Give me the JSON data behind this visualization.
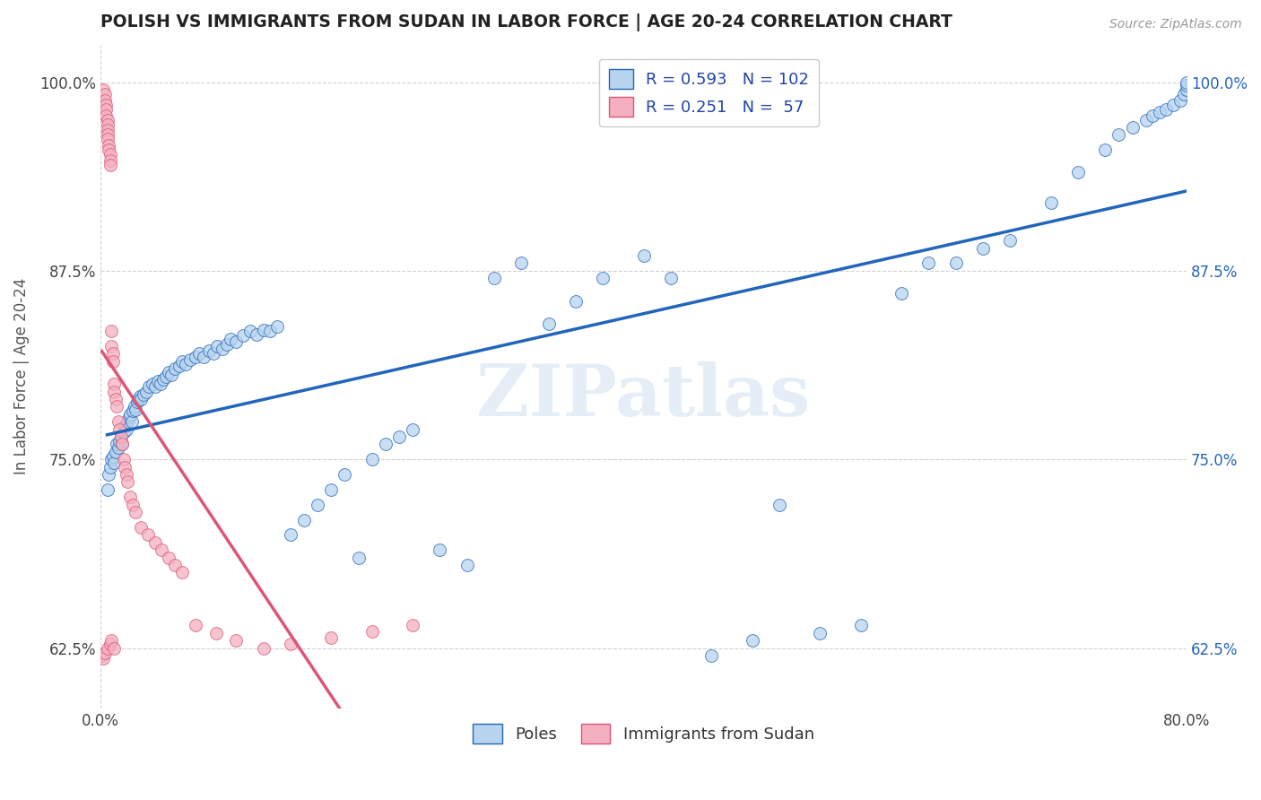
{
  "title": "POLISH VS IMMIGRANTS FROM SUDAN IN LABOR FORCE | AGE 20-24 CORRELATION CHART",
  "source": "Source: ZipAtlas.com",
  "ylabel": "In Labor Force | Age 20-24",
  "blue_r": 0.593,
  "blue_n": 102,
  "pink_r": 0.251,
  "pink_n": 57,
  "legend_label_blue": "Poles",
  "legend_label_pink": "Immigrants from Sudan",
  "blue_color": "#b8d4ee",
  "pink_color": "#f4b0c0",
  "blue_line_color": "#2266bb",
  "pink_line_color": "#dd5577",
  "legend_r_color": "#2244aa",
  "background_color": "#ffffff",
  "xlim": [
    0.0,
    0.8
  ],
  "ylim": [
    0.585,
    1.025
  ],
  "y_ticks": [
    0.625,
    0.75,
    0.875,
    1.0
  ],
  "y_labels": [
    "62.5%",
    "75.0%",
    "87.5%",
    "100.0%"
  ],
  "blue_scatter_x": [
    0.005,
    0.006,
    0.007,
    0.008,
    0.009,
    0.01,
    0.011,
    0.012,
    0.013,
    0.014,
    0.015,
    0.016,
    0.017,
    0.018,
    0.019,
    0.02,
    0.021,
    0.022,
    0.023,
    0.024,
    0.025,
    0.026,
    0.027,
    0.028,
    0.029,
    0.03,
    0.032,
    0.034,
    0.036,
    0.038,
    0.04,
    0.042,
    0.044,
    0.046,
    0.048,
    0.05,
    0.052,
    0.055,
    0.058,
    0.06,
    0.063,
    0.066,
    0.07,
    0.073,
    0.076,
    0.08,
    0.083,
    0.086,
    0.09,
    0.093,
    0.096,
    0.1,
    0.105,
    0.11,
    0.115,
    0.12,
    0.125,
    0.13,
    0.14,
    0.15,
    0.16,
    0.17,
    0.18,
    0.19,
    0.2,
    0.21,
    0.22,
    0.23,
    0.25,
    0.27,
    0.29,
    0.31,
    0.33,
    0.35,
    0.37,
    0.4,
    0.42,
    0.45,
    0.48,
    0.5,
    0.53,
    0.56,
    0.59,
    0.61,
    0.63,
    0.65,
    0.67,
    0.7,
    0.72,
    0.74,
    0.75,
    0.76,
    0.77,
    0.775,
    0.78,
    0.785,
    0.79,
    0.795,
    0.798,
    0.8,
    0.8,
    0.8
  ],
  "blue_scatter_y": [
    0.73,
    0.74,
    0.745,
    0.75,
    0.752,
    0.748,
    0.755,
    0.76,
    0.758,
    0.762,
    0.765,
    0.76,
    0.768,
    0.772,
    0.77,
    0.775,
    0.778,
    0.78,
    0.775,
    0.782,
    0.785,
    0.783,
    0.788,
    0.79,
    0.792,
    0.79,
    0.793,
    0.795,
    0.798,
    0.8,
    0.798,
    0.802,
    0.8,
    0.803,
    0.805,
    0.808,
    0.806,
    0.81,
    0.812,
    0.815,
    0.813,
    0.816,
    0.818,
    0.82,
    0.818,
    0.822,
    0.82,
    0.825,
    0.823,
    0.826,
    0.83,
    0.828,
    0.832,
    0.835,
    0.833,
    0.836,
    0.835,
    0.838,
    0.7,
    0.71,
    0.72,
    0.73,
    0.74,
    0.685,
    0.75,
    0.76,
    0.765,
    0.77,
    0.69,
    0.68,
    0.87,
    0.88,
    0.84,
    0.855,
    0.87,
    0.885,
    0.87,
    0.62,
    0.63,
    0.72,
    0.635,
    0.64,
    0.86,
    0.88,
    0.88,
    0.89,
    0.895,
    0.92,
    0.94,
    0.955,
    0.965,
    0.97,
    0.975,
    0.978,
    0.98,
    0.982,
    0.985,
    0.988,
    0.992,
    0.995,
    0.998,
    1.0
  ],
  "pink_scatter_x": [
    0.002,
    0.003,
    0.003,
    0.004,
    0.004,
    0.004,
    0.005,
    0.005,
    0.005,
    0.005,
    0.005,
    0.006,
    0.006,
    0.007,
    0.007,
    0.007,
    0.008,
    0.008,
    0.009,
    0.009,
    0.01,
    0.01,
    0.011,
    0.012,
    0.013,
    0.014,
    0.015,
    0.016,
    0.017,
    0.018,
    0.019,
    0.02,
    0.022,
    0.024,
    0.026,
    0.03,
    0.035,
    0.04,
    0.045,
    0.05,
    0.055,
    0.06,
    0.07,
    0.085,
    0.1,
    0.12,
    0.14,
    0.17,
    0.2,
    0.23,
    0.001,
    0.002,
    0.003,
    0.005,
    0.007,
    0.008,
    0.01
  ],
  "pink_scatter_y": [
    0.995,
    0.992,
    0.988,
    0.985,
    0.982,
    0.978,
    0.975,
    0.972,
    0.968,
    0.965,
    0.962,
    0.958,
    0.955,
    0.952,
    0.948,
    0.945,
    0.835,
    0.825,
    0.82,
    0.815,
    0.8,
    0.795,
    0.79,
    0.785,
    0.775,
    0.77,
    0.765,
    0.76,
    0.75,
    0.745,
    0.74,
    0.735,
    0.725,
    0.72,
    0.715,
    0.705,
    0.7,
    0.695,
    0.69,
    0.685,
    0.68,
    0.675,
    0.64,
    0.635,
    0.63,
    0.625,
    0.628,
    0.632,
    0.636,
    0.64,
    0.62,
    0.618,
    0.622,
    0.625,
    0.628,
    0.63,
    0.625
  ]
}
